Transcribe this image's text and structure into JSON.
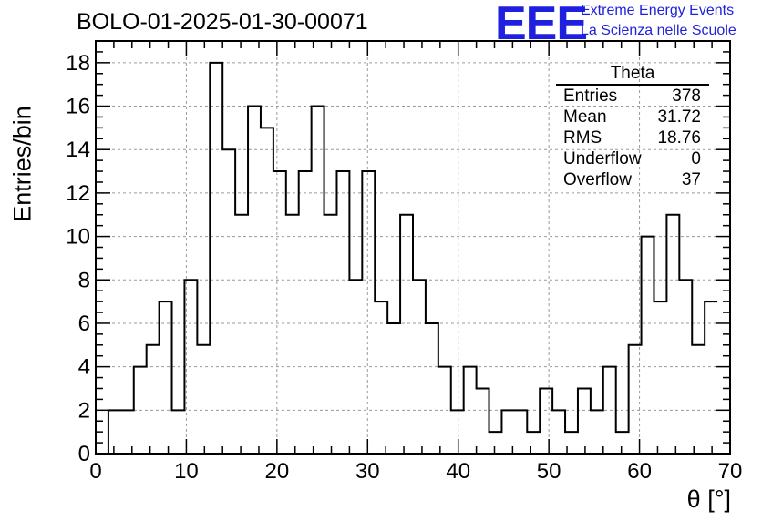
{
  "chart_data": {
    "type": "histogram",
    "title": "BOLO-01-2025-01-30-00071",
    "xlabel": "θ [°]",
    "ylabel": "Entries/bin",
    "xlim": [
      0,
      70
    ],
    "ylim": [
      0,
      19
    ],
    "grid": true,
    "bin_width": 1.4,
    "bin_start": 1.4,
    "values": [
      2,
      2,
      4,
      5,
      7,
      2,
      8,
      5,
      18,
      14,
      11,
      16,
      15,
      13,
      11,
      13,
      16,
      11,
      13,
      8,
      13,
      7,
      6,
      11,
      8,
      6,
      4,
      2,
      4,
      3,
      1,
      2,
      2,
      1,
      3,
      2,
      1,
      3,
      2,
      4,
      1,
      5,
      10,
      7,
      11,
      8,
      5,
      7
    ],
    "x_ticks": [
      "0",
      "10",
      "20",
      "30",
      "40",
      "50",
      "60",
      "70"
    ],
    "y_ticks": [
      "0",
      "2",
      "4",
      "6",
      "8",
      "10",
      "12",
      "14",
      "16",
      "18"
    ],
    "x_tick_values": [
      0,
      10,
      20,
      30,
      40,
      50,
      60,
      70
    ],
    "y_tick_values": [
      0,
      2,
      4,
      6,
      8,
      10,
      12,
      14,
      16,
      18
    ]
  },
  "logo": {
    "text": "EEE",
    "line1": "Extreme Energy Events",
    "line2": "La Scienza nelle Scuole",
    "color": "#1f1fe0"
  },
  "stats": {
    "title": "Theta",
    "rows": [
      {
        "label": "Entries",
        "value": "378"
      },
      {
        "label": "Mean",
        "value": "31.72"
      },
      {
        "label": "RMS",
        "value": "18.76"
      },
      {
        "label": "Underflow",
        "value": "0"
      },
      {
        "label": "Overflow",
        "value": "37"
      }
    ]
  }
}
